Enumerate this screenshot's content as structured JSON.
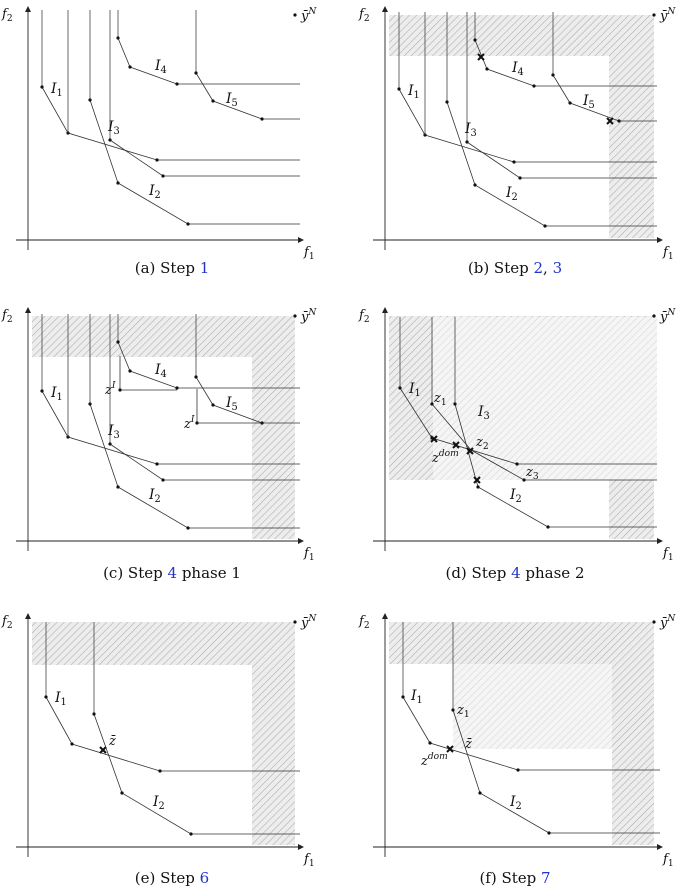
{
  "colors": {
    "curve": "#333333",
    "shade": "#dcdcdc",
    "hatch": "#b0b0b0",
    "reference": "#2233cc"
  },
  "axes": {
    "x_label": "f",
    "x_sub": "1",
    "y_label": "f",
    "y_sub": "2",
    "corner_label": "ȳ",
    "corner_sup": "N"
  },
  "panels": [
    {
      "id": "a",
      "caption_prefix": "(a) Step ",
      "caption_refs": [
        "1"
      ],
      "curves": [
        {
          "name": "I_1",
          "label": "I",
          "sub": "1"
        },
        {
          "name": "I_2",
          "label": "I",
          "sub": "2"
        },
        {
          "name": "I_3",
          "label": "I",
          "sub": "3"
        },
        {
          "name": "I_4",
          "label": "I",
          "sub": "4"
        },
        {
          "name": "I_5",
          "label": "I",
          "sub": "5"
        }
      ],
      "point_labels": []
    },
    {
      "id": "b",
      "caption_prefix": "(b) Step ",
      "caption_refs": [
        "2",
        "3"
      ],
      "curves": [
        {
          "name": "I_1",
          "label": "I",
          "sub": "1"
        },
        {
          "name": "I_2",
          "label": "I",
          "sub": "2"
        },
        {
          "name": "I_3",
          "label": "I",
          "sub": "3"
        },
        {
          "name": "I_4",
          "label": "I",
          "sub": "4"
        },
        {
          "name": "I_5",
          "label": "I",
          "sub": "5"
        }
      ],
      "point_labels": []
    },
    {
      "id": "c",
      "caption_prefix": "(c) Step ",
      "caption_refs": [
        "4"
      ],
      "caption_suffix": " phase 1",
      "curves": [
        {
          "name": "I_1",
          "label": "I",
          "sub": "1"
        },
        {
          "name": "I_2",
          "label": "I",
          "sub": "2"
        },
        {
          "name": "I_3",
          "label": "I",
          "sub": "3"
        },
        {
          "name": "I_4",
          "label": "I",
          "sub": "4"
        },
        {
          "name": "I_5",
          "label": "I",
          "sub": "5"
        }
      ],
      "point_labels": [
        {
          "name": "z_I_4",
          "label": "z",
          "sup": "I"
        },
        {
          "name": "z_I_5",
          "label": "z",
          "sup": "I"
        }
      ]
    },
    {
      "id": "d",
      "caption_prefix": "(d) Step ",
      "caption_refs": [
        "4"
      ],
      "caption_suffix": " phase 2",
      "curves": [
        {
          "name": "I_1",
          "label": "I",
          "sub": "1"
        },
        {
          "name": "I_2",
          "label": "I",
          "sub": "2"
        },
        {
          "name": "I_3",
          "label": "I",
          "sub": "3"
        }
      ],
      "point_labels": [
        {
          "name": "z_1",
          "label": "z",
          "sub": "1"
        },
        {
          "name": "z_2",
          "label": "z",
          "sub": "2"
        },
        {
          "name": "z_3",
          "label": "z",
          "sub": "3"
        },
        {
          "name": "z_dom",
          "label": "z",
          "sup": "dom"
        }
      ]
    },
    {
      "id": "e",
      "caption_prefix": "(e) Step ",
      "caption_refs": [
        "6"
      ],
      "curves": [
        {
          "name": "I_1",
          "label": "I",
          "sub": "1"
        },
        {
          "name": "I_2",
          "label": "I",
          "sub": "2"
        }
      ],
      "point_labels": [
        {
          "name": "z_bar",
          "label": "z̄"
        }
      ]
    },
    {
      "id": "f",
      "caption_prefix": "(f) Step ",
      "caption_refs": [
        "7"
      ],
      "curves": [
        {
          "name": "I_1",
          "label": "I",
          "sub": "1"
        },
        {
          "name": "I_2",
          "label": "I",
          "sub": "2"
        }
      ],
      "point_labels": [
        {
          "name": "z_1",
          "label": "z",
          "sub": "1"
        },
        {
          "name": "z_bar",
          "label": "z̄"
        },
        {
          "name": "z_dom",
          "label": "z",
          "sup": "dom"
        }
      ]
    }
  ]
}
